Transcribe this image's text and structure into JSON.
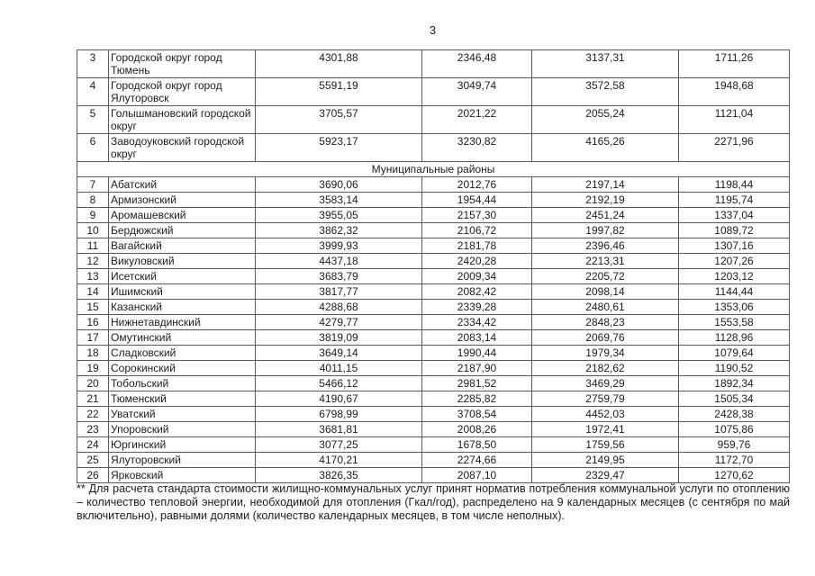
{
  "page_number": "3",
  "table": {
    "rows": [
      {
        "type": "data",
        "lines": 2,
        "num": "3",
        "name": "Городской округ город Тюмень",
        "values": [
          "4301,88",
          "2346,48",
          "3137,31",
          "1711,26"
        ]
      },
      {
        "type": "data",
        "lines": 2,
        "num": "4",
        "name": "Городской округ город Ялуторовск",
        "values": [
          "5591,19",
          "3049,74",
          "3572,58",
          "1948,68"
        ]
      },
      {
        "type": "data",
        "lines": 2,
        "num": "5",
        "name": "Голышмановский городской округ",
        "values": [
          "3705,57",
          "2021,22",
          "2055,24",
          "1121,04"
        ]
      },
      {
        "type": "data",
        "lines": 2,
        "num": "6",
        "name": "Заводоуковский городской округ",
        "values": [
          "5923,17",
          "3230,82",
          "4165,26",
          "2271,96"
        ]
      },
      {
        "type": "section",
        "label": "Муниципальные районы"
      },
      {
        "type": "data",
        "lines": 1,
        "num": "7",
        "name": "Абатский",
        "values": [
          "3690,06",
          "2012,76",
          "2197,14",
          "1198,44"
        ]
      },
      {
        "type": "data",
        "lines": 1,
        "num": "8",
        "name": "Армизонский",
        "values": [
          "3583,14",
          "1954,44",
          "2192,19",
          "1195,74"
        ]
      },
      {
        "type": "data",
        "lines": 1,
        "num": "9",
        "name": "Аромашевский",
        "values": [
          "3955,05",
          "2157,30",
          "2451,24",
          "1337,04"
        ]
      },
      {
        "type": "data",
        "lines": 1,
        "num": "10",
        "name": "Бердюжский",
        "values": [
          "3862,32",
          "2106,72",
          "1997,82",
          "1089,72"
        ]
      },
      {
        "type": "data",
        "lines": 1,
        "num": "11",
        "name": "Вагайский",
        "values": [
          "3999,93",
          "2181,78",
          "2396,46",
          "1307,16"
        ]
      },
      {
        "type": "data",
        "lines": 1,
        "num": "12",
        "name": "Викуловский",
        "values": [
          "4437,18",
          "2420,28",
          "2213,31",
          "1207,26"
        ]
      },
      {
        "type": "data",
        "lines": 1,
        "num": "13",
        "name": "Исетский",
        "values": [
          "3683,79",
          "2009,34",
          "2205,72",
          "1203,12"
        ]
      },
      {
        "type": "data",
        "lines": 1,
        "num": "14",
        "name": "Ишимский",
        "values": [
          "3817,77",
          "2082,42",
          "2098,14",
          "1144,44"
        ]
      },
      {
        "type": "data",
        "lines": 1,
        "num": "15",
        "name": "Казанский",
        "values": [
          "4288,68",
          "2339,28",
          "2480,61",
          "1353,06"
        ]
      },
      {
        "type": "data",
        "lines": 1,
        "num": "16",
        "name": "Нижнетавдинский",
        "values": [
          "4279,77",
          "2334,42",
          "2848,23",
          "1553,58"
        ]
      },
      {
        "type": "data",
        "lines": 1,
        "num": "17",
        "name": "Омутинский",
        "values": [
          "3819,09",
          "2083,14",
          "2069,76",
          "1128,96"
        ]
      },
      {
        "type": "data",
        "lines": 1,
        "num": "18",
        "name": "Сладковский",
        "values": [
          "3649,14",
          "1990,44",
          "1979,34",
          "1079,64"
        ]
      },
      {
        "type": "data",
        "lines": 1,
        "num": "19",
        "name": "Сорокинский",
        "values": [
          "4011,15",
          "2187,90",
          "2182,62",
          "1190,52"
        ]
      },
      {
        "type": "data",
        "lines": 1,
        "num": "20",
        "name": "Тобольский",
        "values": [
          "5466,12",
          "2981,52",
          "3469,29",
          "1892,34"
        ]
      },
      {
        "type": "data",
        "lines": 1,
        "num": "21",
        "name": "Тюменский",
        "values": [
          "4190,67",
          "2285,82",
          "2759,79",
          "1505,34"
        ]
      },
      {
        "type": "data",
        "lines": 1,
        "num": "22",
        "name": "Уватский",
        "values": [
          "6798,99",
          "3708,54",
          "4452,03",
          "2428,38"
        ]
      },
      {
        "type": "data",
        "lines": 1,
        "num": "23",
        "name": "Упоровский",
        "values": [
          "3681,81",
          "2008,26",
          "1972,41",
          "1075,86"
        ]
      },
      {
        "type": "data",
        "lines": 1,
        "num": "24",
        "name": "Юргинский",
        "values": [
          "3077,25",
          "1678,50",
          "1759,56",
          "959,76"
        ]
      },
      {
        "type": "data",
        "lines": 1,
        "num": "25",
        "name": "Ялуторовский",
        "values": [
          "4170,21",
          "2274,66",
          "2149,95",
          "1172,70"
        ]
      },
      {
        "type": "data",
        "lines": 1,
        "num": "26",
        "name": "Ярковский",
        "values": [
          "3826,35",
          "2087,10",
          "2329,47",
          "1270,62"
        ]
      }
    ]
  },
  "footnote": "** Для расчета стандарта стоимости жилищно-коммунальных услуг принят норматив потребления коммунальной услуги по отоплению – количество тепловой энергии, необходимой для отопления (Гкал/год), распределено на 9 календарных месяцев (с сентября по май включительно), равными долями (количество календарных месяцев, в том числе неполных)."
}
